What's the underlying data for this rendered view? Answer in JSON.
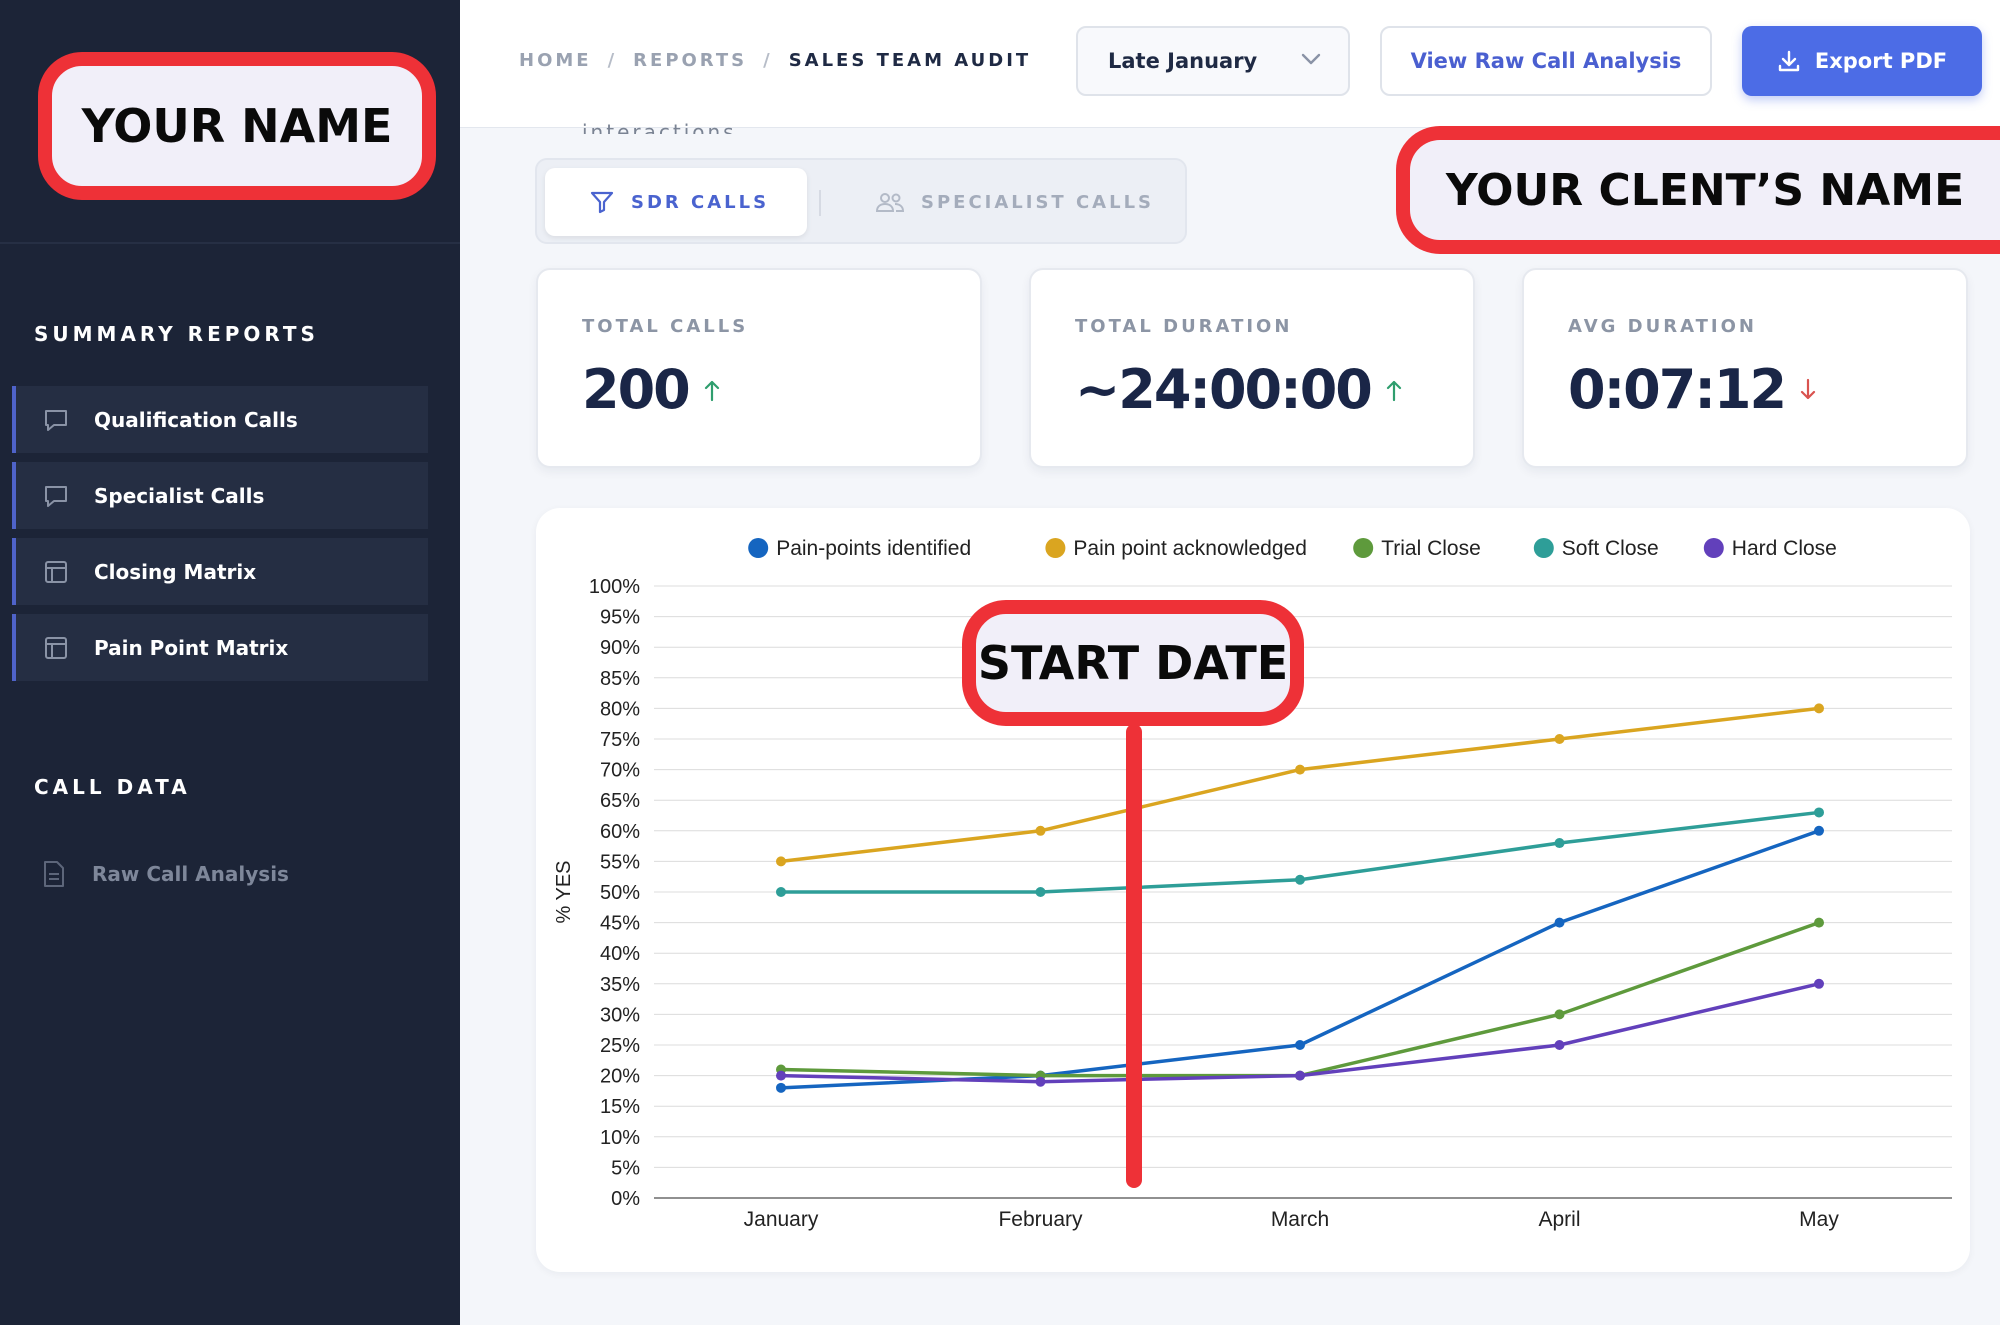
{
  "sidebar": {
    "sections": [
      {
        "heading": "SUMMARY REPORTS",
        "items": [
          {
            "label": "Qualification Calls",
            "icon": "chat-bubble-icon"
          },
          {
            "label": "Specialist Calls",
            "icon": "chat-bubble-icon"
          },
          {
            "label": "Closing Matrix",
            "icon": "table-layout-icon"
          },
          {
            "label": "Pain Point Matrix",
            "icon": "table-layout-icon"
          }
        ]
      },
      {
        "heading": "CALL DATA",
        "items": [
          {
            "label": "Raw Call Analysis",
            "icon": "document-icon"
          }
        ]
      }
    ]
  },
  "header": {
    "breadcrumb": [
      "HOME",
      "REPORTS",
      "SALES TEAM AUDIT"
    ],
    "breadcrumb_separator": "/",
    "period_select": "Late January",
    "view_raw_label": "View Raw Call Analysis",
    "export_label": "Export PDF"
  },
  "clipped_text": "interactions",
  "tabs": [
    {
      "label": "SDR CALLS",
      "icon": "funnel-icon",
      "active": true
    },
    {
      "label": "SPECIALIST CALLS",
      "icon": "users-icon",
      "active": false
    }
  ],
  "metrics": [
    {
      "label": "TOTAL CALLS",
      "value": "200",
      "trend": "up"
    },
    {
      "label": "TOTAL DURATION",
      "value": "~24:00:00",
      "trend": "up"
    },
    {
      "label": "AVG DURATION",
      "value": "0:07:12",
      "trend": "down"
    }
  ],
  "colors": {
    "sidebar_bg": "#1c2437",
    "accent": "#4c6ce6",
    "trend_up": "#2f9e6e",
    "trend_down": "#d9534f",
    "annotation_red": "#ee3137"
  },
  "overlays": {
    "your_name": "YOUR  NAME",
    "client_name": "YOUR CLENT’S  NAME",
    "start_date": "START DATE"
  },
  "chart_data": {
    "type": "line",
    "categories": [
      "January",
      "February",
      "March",
      "April",
      "May"
    ],
    "ylabel": "% YES",
    "ylim": [
      0,
      100
    ],
    "ytick_step": 5,
    "ytick_suffix": "%",
    "grid": true,
    "legend_position": "top",
    "series": [
      {
        "name": "Pain-points identified",
        "color": "#1565c0",
        "values": [
          18,
          20,
          25,
          45,
          60
        ]
      },
      {
        "name": "Pain point acknowledged",
        "color": "#daa520",
        "values": [
          55,
          60,
          70,
          75,
          80
        ]
      },
      {
        "name": "Trial Close",
        "color": "#5e9a3c",
        "values": [
          21,
          20,
          20,
          30,
          45
        ]
      },
      {
        "name": "Soft Close",
        "color": "#2e9e98",
        "values": [
          50,
          50,
          52,
          58,
          63
        ]
      },
      {
        "name": "Hard Close",
        "color": "#6240bb",
        "values": [
          20,
          19,
          20,
          25,
          35
        ]
      }
    ]
  }
}
